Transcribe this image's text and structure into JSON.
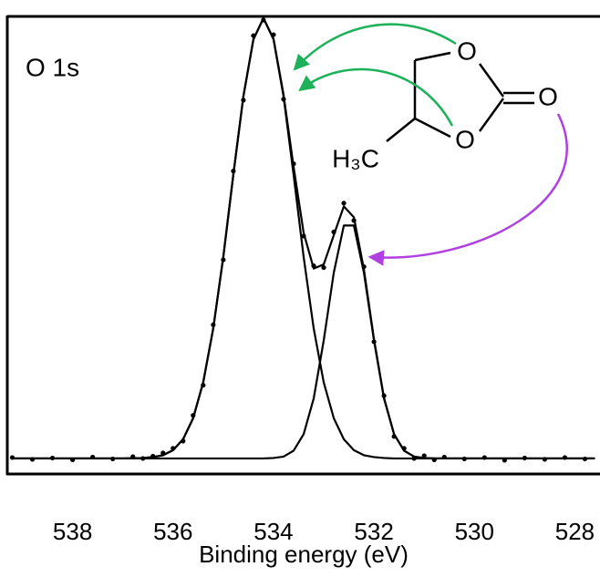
{
  "chart_data": {
    "type": "line",
    "annotation": "O 1s",
    "x_label": "Binding energy (eV)",
    "structure_labels": [
      "O",
      "O",
      "O",
      "H₃C"
    ],
    "xlim": [
      539.3,
      527.5
    ],
    "xticks": [
      538,
      536,
      534,
      532,
      530,
      528
    ],
    "ylim": [
      0,
      100
    ],
    "series": [
      {
        "style": "dots",
        "color": "#000000",
        "x": [
          539.2,
          538.8,
          538.4,
          538.0,
          537.6,
          537.2,
          536.8,
          536.6,
          536.4,
          536.2,
          536.0,
          535.8,
          535.6,
          535.4,
          535.2,
          535.0,
          534.8,
          534.6,
          534.4,
          534.2,
          534.0,
          533.8,
          533.6,
          533.4,
          533.2,
          533.0,
          532.8,
          532.6,
          532.4,
          532.2,
          532.0,
          531.8,
          531.6,
          531.4,
          531.2,
          531.0,
          530.8,
          530.6,
          530.2,
          529.8,
          529.4,
          529.0,
          528.6,
          528.2,
          527.8
        ],
        "values": [
          3.6,
          3.2,
          3.5,
          3.1,
          3.7,
          3.3,
          3.8,
          3.4,
          3.9,
          4.6,
          5.6,
          7.2,
          12.8,
          19.4,
          32.6,
          46.8,
          66.2,
          81.7,
          95.8,
          99.2,
          96.0,
          81.9,
          67.8,
          52.0,
          45.5,
          45.1,
          52.9,
          59.2,
          55.4,
          45.3,
          28.9,
          17.1,
          8.2,
          5.6,
          3.4,
          4.0,
          3.1,
          3.7,
          3.3,
          3.6,
          3.0,
          3.5,
          3.2,
          3.6,
          3.3
        ]
      },
      {
        "style": "line",
        "color": "#000000",
        "x": [
          539.2,
          538.0,
          537.0,
          536.6,
          536.4,
          536.2,
          536.0,
          535.8,
          535.6,
          535.4,
          535.2,
          535.0,
          534.8,
          534.6,
          534.4,
          534.2,
          534.0,
          533.8,
          533.6,
          533.4,
          533.2,
          533.0,
          532.8,
          532.6,
          532.4,
          532.2,
          532.0,
          531.8,
          531.6,
          531.4,
          531.2,
          531.0,
          530.8,
          530.6,
          530.0,
          529.0,
          528.0,
          527.6
        ],
        "values": [
          3.4,
          3.4,
          3.4,
          3.5,
          3.7,
          4.1,
          5.2,
          7.6,
          12.2,
          20.0,
          31.8,
          47.4,
          65.4,
          82.5,
          95.0,
          99.6,
          95.0,
          82.5,
          65.4,
          47.4,
          31.8,
          20.0,
          12.2,
          7.6,
          5.2,
          4.1,
          3.7,
          3.5,
          3.4,
          3.4,
          3.4,
          3.4,
          3.4,
          3.4,
          3.4,
          3.4,
          3.4,
          3.4
        ]
      },
      {
        "style": "line",
        "color": "#000000",
        "x": [
          539.2,
          538.0,
          537.0,
          536.6,
          536.4,
          536.2,
          536.0,
          535.8,
          535.6,
          535.4,
          535.2,
          535.0,
          534.8,
          534.6,
          534.4,
          534.2,
          534.0,
          533.8,
          533.6,
          533.4,
          533.2,
          533.0,
          532.8,
          532.6,
          532.4,
          532.2,
          532.0,
          531.8,
          531.6,
          531.4,
          531.2,
          531.0,
          530.8,
          530.6,
          530.0,
          529.0,
          528.0,
          527.6
        ],
        "values": [
          3.4,
          3.4,
          3.4,
          3.4,
          3.4,
          3.4,
          3.4,
          3.4,
          3.4,
          3.4,
          3.4,
          3.4,
          3.4,
          3.4,
          3.4,
          3.4,
          3.5,
          3.8,
          5.1,
          8.7,
          16.5,
          29.2,
          44.0,
          54.3,
          54.3,
          44.0,
          29.2,
          16.5,
          8.7,
          5.1,
          3.8,
          3.5,
          3.4,
          3.4,
          3.4,
          3.4,
          3.4,
          3.4
        ]
      },
      {
        "style": "line",
        "color": "#000000",
        "x": [
          539.2,
          538.0,
          537.0,
          536.6,
          536.4,
          536.2,
          536.0,
          535.8,
          535.6,
          535.4,
          535.2,
          535.0,
          534.8,
          534.6,
          534.4,
          534.2,
          534.0,
          533.8,
          533.6,
          533.4,
          533.2,
          533.0,
          532.8,
          532.6,
          532.4,
          532.2,
          532.0,
          531.8,
          531.6,
          531.4,
          531.2,
          531.0,
          530.8,
          530.6,
          530.0,
          529.0,
          528.0,
          527.6
        ],
        "values": [
          3.4,
          3.4,
          3.4,
          3.5,
          3.7,
          4.1,
          5.2,
          7.6,
          12.2,
          20.0,
          31.8,
          47.4,
          65.4,
          82.5,
          95.0,
          99.6,
          95.1,
          82.9,
          67.1,
          52.7,
          44.9,
          45.8,
          52.2,
          58.5,
          56.1,
          44.7,
          29.5,
          16.6,
          8.7,
          5.1,
          3.8,
          3.5,
          3.4,
          3.4,
          3.4,
          3.4,
          3.4,
          3.4
        ]
      }
    ]
  }
}
